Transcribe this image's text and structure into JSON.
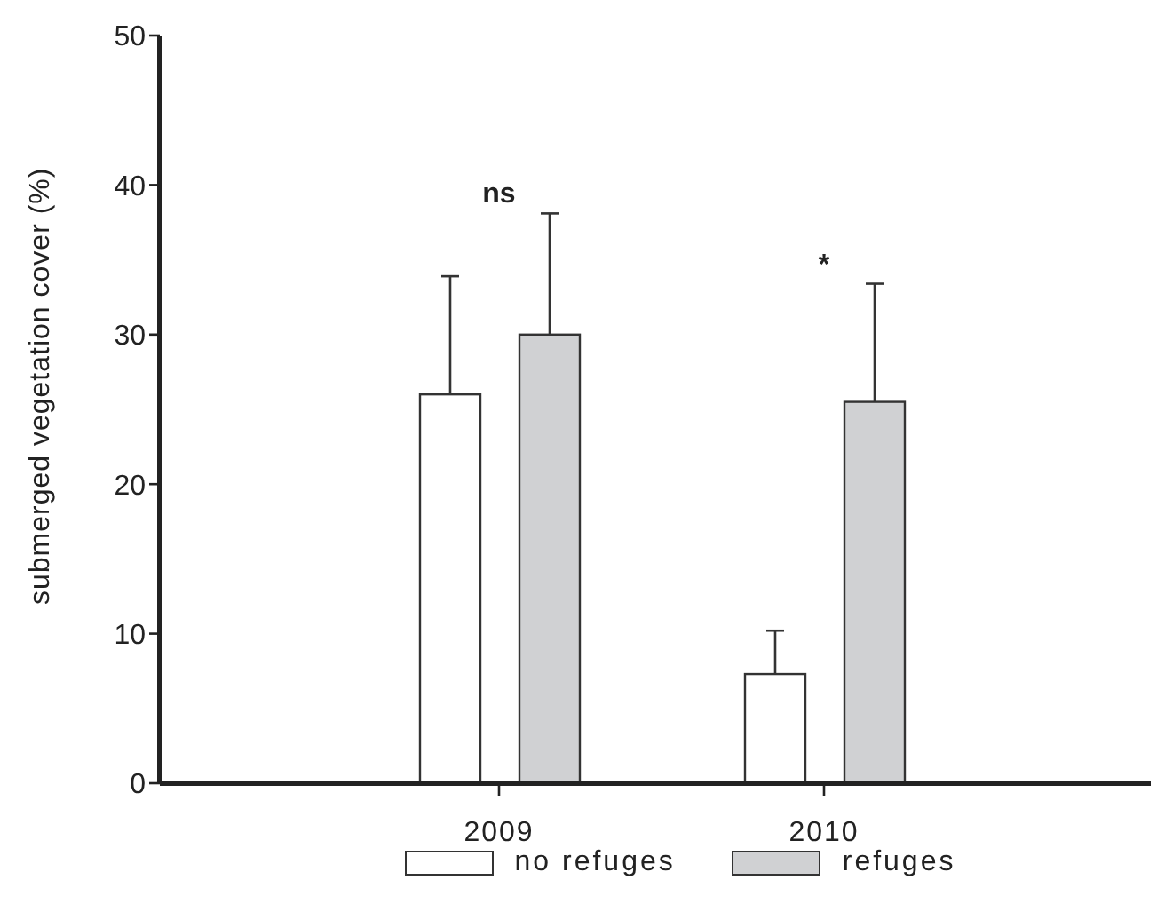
{
  "chart_data": {
    "type": "bar",
    "ylabel": "submerged vegetation cover (%)",
    "categories": [
      "2009",
      "2010"
    ],
    "series": [
      {
        "name": "no refuges",
        "color": "#ffffff",
        "values": [
          26.0,
          7.3
        ],
        "errors": [
          [
            26.0,
            33.9
          ],
          [
            7.3,
            10.2
          ]
        ]
      },
      {
        "name": "refuges",
        "color": "#d0d1d3",
        "values": [
          30.0,
          25.5
        ],
        "errors": [
          [
            30.0,
            38.1
          ],
          [
            25.5,
            33.4
          ]
        ]
      }
    ],
    "ylim": [
      0,
      50
    ],
    "yticks": [
      0,
      10,
      20,
      30,
      40,
      50
    ],
    "grid": false,
    "legend": "bottom",
    "annotations": [
      "ns",
      "*"
    ]
  }
}
